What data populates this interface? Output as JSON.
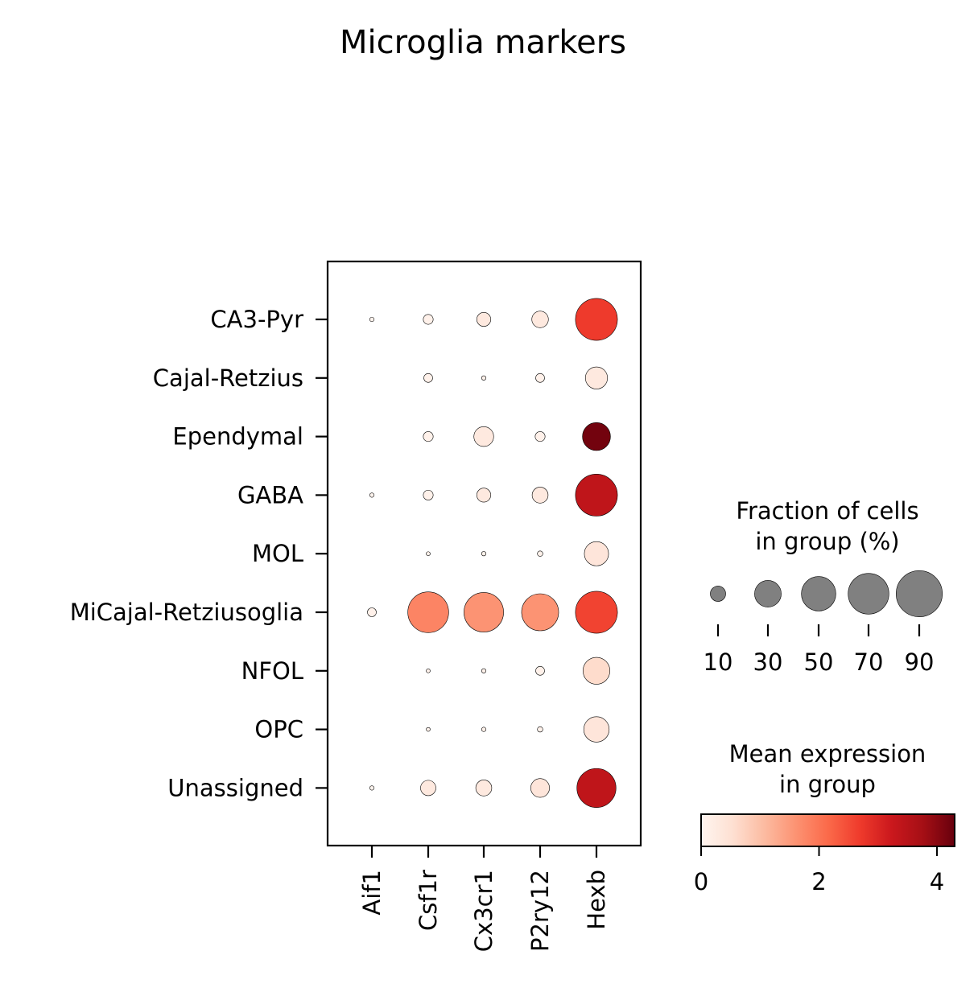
{
  "chart_data": {
    "type": "dotplot",
    "title": "Microglia markers",
    "xlabel": "",
    "ylabel": "",
    "genes": [
      "Aif1",
      "Csf1r",
      "Cx3cr1",
      "P2ry12",
      "Hexb"
    ],
    "groups": [
      "CA3-Pyr",
      "Cajal-Retzius",
      "Ependymal",
      "GABA",
      "MOL",
      "MiCajal-Retziusoglia",
      "NFOL",
      "OPC",
      "Unassigned"
    ],
    "fraction_pct": [
      [
        1,
        5,
        10,
        14,
        90
      ],
      [
        0,
        4,
        1,
        4,
        25
      ],
      [
        0,
        5,
        20,
        5,
        40
      ],
      [
        1,
        5,
        10,
        13,
        90
      ],
      [
        0,
        0.8,
        1,
        1.5,
        30
      ],
      [
        4,
        85,
        80,
        70,
        90
      ],
      [
        0,
        0.8,
        1,
        4,
        37
      ],
      [
        0,
        0.8,
        1,
        1.5,
        33
      ],
      [
        1,
        12,
        13,
        18,
        78
      ]
    ],
    "mean_expression": [
      [
        0.05,
        0.1,
        0.3,
        0.3,
        2.7
      ],
      [
        0,
        0.1,
        0.1,
        0.1,
        0.3
      ],
      [
        0,
        0.1,
        0.3,
        0.1,
        4.2
      ],
      [
        0.05,
        0.1,
        0.3,
        0.3,
        3.4
      ],
      [
        0,
        0.1,
        0.1,
        0.1,
        0.4
      ],
      [
        0.1,
        1.8,
        1.6,
        1.6,
        2.6
      ],
      [
        0,
        0.1,
        0.1,
        0.1,
        0.6
      ],
      [
        0,
        0.1,
        0.1,
        0.1,
        0.4
      ],
      [
        0.05,
        0.3,
        0.3,
        0.4,
        3.4
      ]
    ],
    "size_legend": {
      "title_line1": "Fraction of cells",
      "title_line2": "in group (%)",
      "values": [
        10,
        30,
        50,
        70,
        90
      ],
      "labels": [
        "10",
        "30",
        "50",
        "70",
        "90"
      ],
      "dot_color": "#808080"
    },
    "color_legend": {
      "title_line1": "Mean expression",
      "title_line2": "in group",
      "range": [
        0,
        4.3
      ],
      "ticks": [
        0,
        2,
        4
      ],
      "tick_labels": [
        "0",
        "2",
        "4"
      ],
      "colormap": "Reds",
      "stops": [
        "#fff5f0",
        "#fee0d2",
        "#fcbba1",
        "#fc9272",
        "#fb6a4a",
        "#ef3b2c",
        "#cb181d",
        "#a50f15",
        "#67000d"
      ]
    }
  }
}
